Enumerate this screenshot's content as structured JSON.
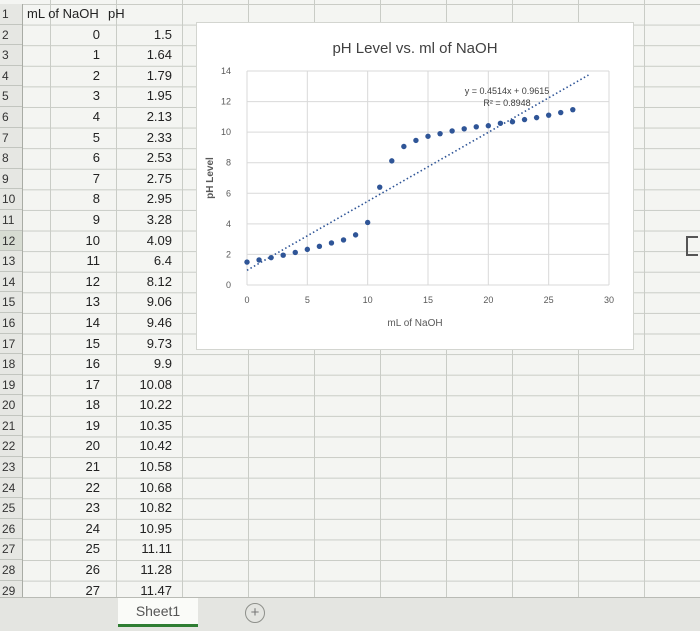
{
  "sheet": {
    "tab_label": "Sheet1",
    "add_sheet_symbol": "+",
    "headers": {
      "col_a": "mL of NaOH",
      "col_b": "pH"
    },
    "row_numbers": [
      "1",
      "2",
      "3",
      "4",
      "5",
      "6",
      "7",
      "8",
      "9",
      "10",
      "11",
      "12",
      "13",
      "14",
      "15",
      "16",
      "17",
      "18",
      "19",
      "20",
      "21",
      "22",
      "23",
      "24",
      "25",
      "26",
      "27",
      "28",
      "29"
    ],
    "rows": [
      [
        "0",
        "1.5"
      ],
      [
        "1",
        "1.64"
      ],
      [
        "2",
        "1.79"
      ],
      [
        "3",
        "1.95"
      ],
      [
        "4",
        "2.13"
      ],
      [
        "5",
        "2.33"
      ],
      [
        "6",
        "2.53"
      ],
      [
        "7",
        "2.75"
      ],
      [
        "8",
        "2.95"
      ],
      [
        "9",
        "3.28"
      ],
      [
        "10",
        "4.09"
      ],
      [
        "11",
        "6.4"
      ],
      [
        "12",
        "8.12"
      ],
      [
        "13",
        "9.06"
      ],
      [
        "14",
        "9.46"
      ],
      [
        "15",
        "9.73"
      ],
      [
        "16",
        "9.9"
      ],
      [
        "17",
        "10.08"
      ],
      [
        "18",
        "10.22"
      ],
      [
        "19",
        "10.35"
      ],
      [
        "20",
        "10.42"
      ],
      [
        "21",
        "10.58"
      ],
      [
        "22",
        "10.68"
      ],
      [
        "23",
        "10.82"
      ],
      [
        "24",
        "10.95"
      ],
      [
        "25",
        "11.11"
      ],
      [
        "26",
        "11.28"
      ],
      [
        "27",
        "11.47"
      ]
    ]
  },
  "chart_data": {
    "type": "scatter",
    "title": "pH Level vs. ml of NaOH",
    "xlabel": "mL of NaOH",
    "ylabel": "pH Level",
    "xlim": [
      0,
      30
    ],
    "ylim": [
      0,
      14
    ],
    "x_ticks": [
      0,
      5,
      10,
      15,
      20,
      25,
      30
    ],
    "y_ticks": [
      0,
      2,
      4,
      6,
      8,
      10,
      12,
      14
    ],
    "grid": true,
    "series": [
      {
        "x": [
          0,
          1,
          2,
          3,
          4,
          5,
          6,
          7,
          8,
          9,
          10,
          11,
          12,
          13,
          14,
          15,
          16,
          17,
          18,
          19,
          20,
          21,
          22,
          23,
          24,
          25,
          26,
          27
        ],
        "values": [
          1.5,
          1.64,
          1.79,
          1.95,
          2.13,
          2.33,
          2.53,
          2.75,
          2.95,
          3.28,
          4.09,
          6.4,
          8.12,
          9.06,
          9.46,
          9.73,
          9.9,
          10.08,
          10.22,
          10.35,
          10.42,
          10.58,
          10.68,
          10.82,
          10.95,
          11.11,
          11.28,
          11.47
        ],
        "color": "#2f5597"
      }
    ],
    "trendline": {
      "type": "linear",
      "slope": 0.4514,
      "intercept": 0.9615,
      "equation": "y = 0.4514x + 0.9615",
      "r_squared": "R² = 0.8948",
      "style": "dotted",
      "color": "#2f5597"
    }
  }
}
